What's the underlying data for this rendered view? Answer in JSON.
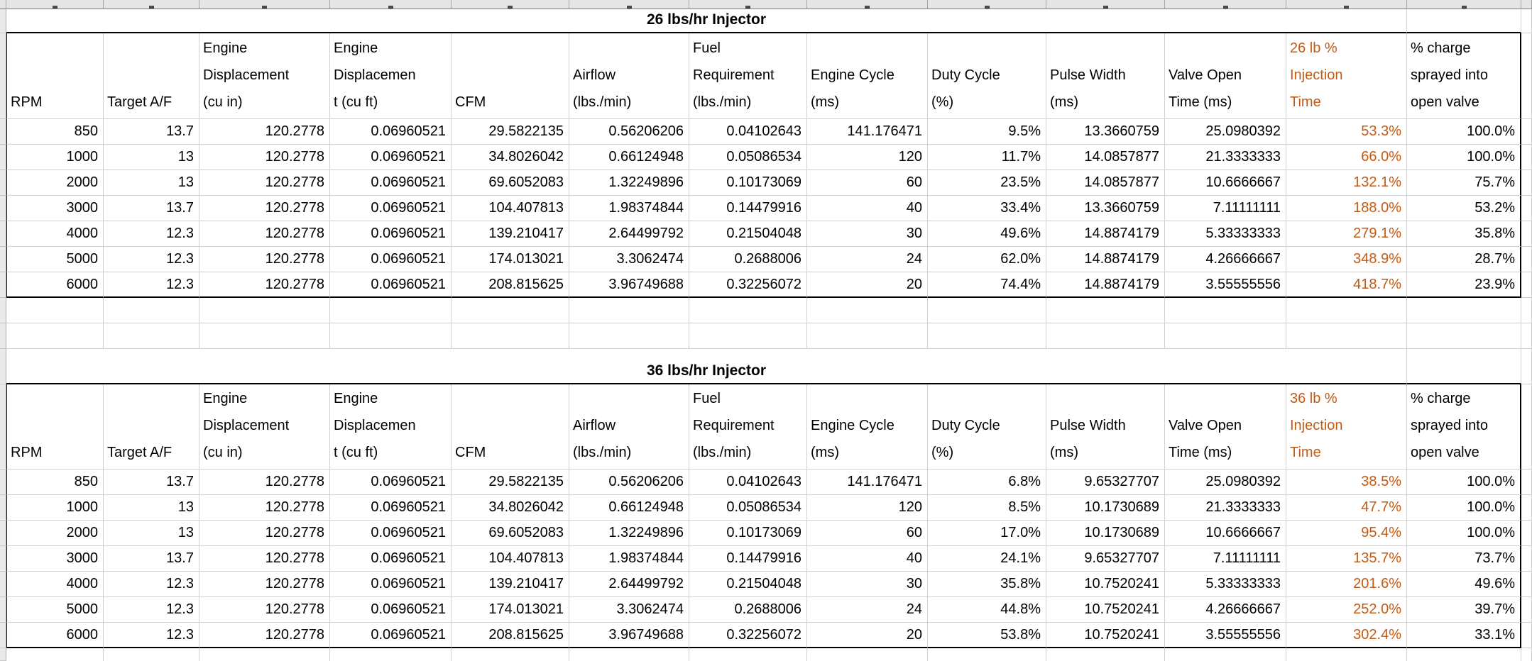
{
  "styles": {
    "accent_orange": "#C55A11",
    "orange_column_index": 11
  },
  "tables": [
    {
      "title": "26 lbs/hr Injector",
      "columns": [
        "RPM",
        "Target A/F",
        "Engine\nDisplacement\n(cu in)",
        "Engine\nDisplacemen\nt (cu ft)",
        "CFM",
        "Airflow\n(lbs./min)",
        "Fuel\nRequirement\n(lbs./min)",
        "Engine Cycle\n(ms)",
        "Duty Cycle\n(%)",
        "Pulse Width\n(ms)",
        "Valve Open\nTime (ms)",
        "26 lb %\nInjection\nTime",
        "% charge\nsprayed into\nopen valve"
      ],
      "rows": [
        [
          "850",
          "13.7",
          "120.2778",
          "0.06960521",
          "29.5822135",
          "0.56206206",
          "0.04102643",
          "141.176471",
          "9.5%",
          "13.3660759",
          "25.0980392",
          "53.3%",
          "100.0%"
        ],
        [
          "1000",
          "13",
          "120.2778",
          "0.06960521",
          "34.8026042",
          "0.66124948",
          "0.05086534",
          "120",
          "11.7%",
          "14.0857877",
          "21.3333333",
          "66.0%",
          "100.0%"
        ],
        [
          "2000",
          "13",
          "120.2778",
          "0.06960521",
          "69.6052083",
          "1.32249896",
          "0.10173069",
          "60",
          "23.5%",
          "14.0857877",
          "10.6666667",
          "132.1%",
          "75.7%"
        ],
        [
          "3000",
          "13.7",
          "120.2778",
          "0.06960521",
          "104.407813",
          "1.98374844",
          "0.14479916",
          "40",
          "33.4%",
          "13.3660759",
          "7.11111111",
          "188.0%",
          "53.2%"
        ],
        [
          "4000",
          "12.3",
          "120.2778",
          "0.06960521",
          "139.210417",
          "2.64499792",
          "0.21504048",
          "30",
          "49.6%",
          "14.8874179",
          "5.33333333",
          "279.1%",
          "35.8%"
        ],
        [
          "5000",
          "12.3",
          "120.2778",
          "0.06960521",
          "174.013021",
          "3.3062474",
          "0.2688006",
          "24",
          "62.0%",
          "14.8874179",
          "4.26666667",
          "348.9%",
          "28.7%"
        ],
        [
          "6000",
          "12.3",
          "120.2778",
          "0.06960521",
          "208.815625",
          "3.96749688",
          "0.32256072",
          "20",
          "74.4%",
          "14.8874179",
          "3.55555556",
          "418.7%",
          "23.9%"
        ]
      ]
    },
    {
      "title": "36 lbs/hr Injector",
      "columns": [
        "RPM",
        "Target A/F",
        "Engine\nDisplacement\n(cu in)",
        "Engine\nDisplacemen\nt (cu ft)",
        "CFM",
        "Airflow\n(lbs./min)",
        "Fuel\nRequirement\n(lbs./min)",
        "Engine Cycle\n(ms)",
        "Duty Cycle\n(%)",
        "Pulse Width\n(ms)",
        "Valve Open\nTime (ms)",
        "36 lb %\nInjection\nTime",
        "% charge\nsprayed into\nopen valve"
      ],
      "rows": [
        [
          "850",
          "13.7",
          "120.2778",
          "0.06960521",
          "29.5822135",
          "0.56206206",
          "0.04102643",
          "141.176471",
          "6.8%",
          "9.65327707",
          "25.0980392",
          "38.5%",
          "100.0%"
        ],
        [
          "1000",
          "13",
          "120.2778",
          "0.06960521",
          "34.8026042",
          "0.66124948",
          "0.05086534",
          "120",
          "8.5%",
          "10.1730689",
          "21.3333333",
          "47.7%",
          "100.0%"
        ],
        [
          "2000",
          "13",
          "120.2778",
          "0.06960521",
          "69.6052083",
          "1.32249896",
          "0.10173069",
          "60",
          "17.0%",
          "10.1730689",
          "10.6666667",
          "95.4%",
          "100.0%"
        ],
        [
          "3000",
          "13.7",
          "120.2778",
          "0.06960521",
          "104.407813",
          "1.98374844",
          "0.14479916",
          "40",
          "24.1%",
          "9.65327707",
          "7.11111111",
          "135.7%",
          "73.7%"
        ],
        [
          "4000",
          "12.3",
          "120.2778",
          "0.06960521",
          "139.210417",
          "2.64499792",
          "0.21504048",
          "30",
          "35.8%",
          "10.7520241",
          "5.33333333",
          "201.6%",
          "49.6%"
        ],
        [
          "5000",
          "12.3",
          "120.2778",
          "0.06960521",
          "174.013021",
          "3.3062474",
          "0.2688006",
          "24",
          "44.8%",
          "10.7520241",
          "4.26666667",
          "252.0%",
          "39.7%"
        ],
        [
          "6000",
          "12.3",
          "120.2778",
          "0.06960521",
          "208.815625",
          "3.96749688",
          "0.32256072",
          "20",
          "53.8%",
          "10.7520241",
          "3.55555556",
          "302.4%",
          "33.1%"
        ]
      ]
    }
  ]
}
